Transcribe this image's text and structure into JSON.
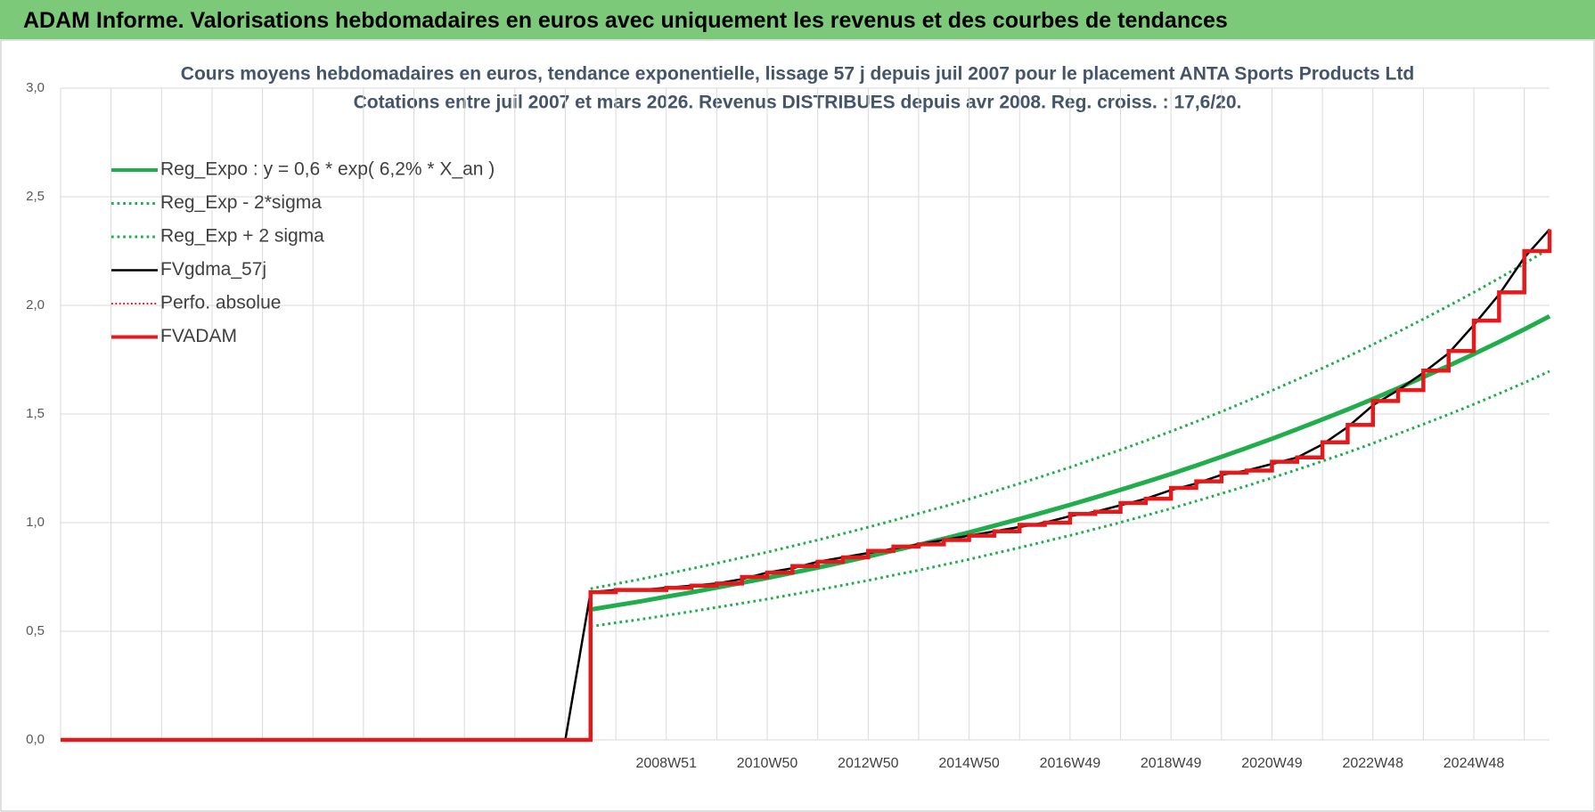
{
  "header": {
    "title": "ADAM Informe. Valorisations hebdomadaires en euros avec uniquement les revenus et des courbes de tendances"
  },
  "chart_data": {
    "type": "line",
    "title": "Cours moyens hebdomadaires en euros, tendance exponentielle, lissage 57 j depuis juil 2007 pour le placement ANTA Sports Products Ltd",
    "subtitle": "Cotations entre juil 2007 et mars 2026. Revenus DISTRIBUES depuis avr 2008. Reg. croiss. : 17,6/20.",
    "categories": [
      null,
      null,
      null,
      null,
      null,
      null,
      null,
      null,
      null,
      null,
      null,
      null,
      null,
      null,
      null,
      null,
      null,
      null,
      null,
      null,
      null,
      null,
      null,
      null,
      "2008W51",
      null,
      null,
      null,
      "2010W50",
      null,
      null,
      null,
      "2012W50",
      null,
      null,
      null,
      "2014W50",
      null,
      null,
      null,
      "2016W49",
      null,
      null,
      null,
      "2018W49",
      null,
      null,
      null,
      "2020W49",
      null,
      null,
      null,
      "2022W48",
      null,
      null,
      null,
      "2024W48",
      null,
      null,
      null
    ],
    "ylim": [
      0,
      3
    ],
    "yticks": [
      {
        "value": 0,
        "label": "0,0"
      },
      {
        "value": 0.5,
        "label": "0,5"
      },
      {
        "value": 1,
        "label": "1,0"
      },
      {
        "value": 1.5,
        "label": "1,5"
      },
      {
        "value": 2,
        "label": "2,0"
      },
      {
        "value": 2.5,
        "label": "2,5"
      },
      {
        "value": 3,
        "label": "3,0"
      }
    ],
    "grid": true,
    "legend": "top-left",
    "series": [
      {
        "name": "Reg_Expo : y = 0,6 * exp( 6,2% *  X_an )",
        "color": "#1fae4b",
        "style": "solid",
        "width": 5,
        "values": [
          null,
          null,
          null,
          null,
          null,
          null,
          null,
          null,
          null,
          null,
          null,
          null,
          null,
          null,
          null,
          null,
          null,
          null,
          null,
          null,
          null,
          0.6,
          0.619,
          0.638,
          0.659,
          0.679,
          0.701,
          0.723,
          0.745,
          0.769,
          0.793,
          0.818,
          0.844,
          0.871,
          0.898,
          0.926,
          0.955,
          0.986,
          1.017,
          1.049,
          1.082,
          1.116,
          1.151,
          1.187,
          1.224,
          1.263,
          1.303,
          1.344,
          1.386,
          1.43,
          1.475,
          1.521,
          1.569,
          1.619,
          1.67,
          1.722,
          1.776,
          1.832,
          1.89,
          1.95
        ]
      },
      {
        "name": "Reg_Exp - 2*sigma",
        "color": "#1fae4b",
        "style": "dotted",
        "width": 3,
        "values": [
          null,
          null,
          null,
          null,
          null,
          null,
          null,
          null,
          null,
          null,
          null,
          null,
          null,
          null,
          null,
          null,
          null,
          null,
          null,
          null,
          null,
          0.522,
          0.539,
          0.555,
          0.573,
          0.591,
          0.61,
          0.629,
          0.648,
          0.669,
          0.69,
          0.712,
          0.734,
          0.758,
          0.781,
          0.806,
          0.831,
          0.858,
          0.885,
          0.913,
          0.941,
          0.971,
          1.001,
          1.033,
          1.065,
          1.099,
          1.134,
          1.169,
          1.206,
          1.244,
          1.283,
          1.323,
          1.365,
          1.409,
          1.453,
          1.498,
          1.545,
          1.594,
          1.644,
          1.697
        ]
      },
      {
        "name": "Reg_Exp + 2 sigma",
        "color": "#1fae4b",
        "style": "dotted",
        "width": 3,
        "values": [
          null,
          null,
          null,
          null,
          null,
          null,
          null,
          null,
          null,
          null,
          null,
          null,
          null,
          null,
          null,
          null,
          null,
          null,
          null,
          null,
          null,
          0.696,
          0.718,
          0.74,
          0.764,
          0.788,
          0.813,
          0.839,
          0.864,
          0.892,
          0.92,
          0.949,
          0.979,
          1.01,
          1.042,
          1.074,
          1.108,
          1.144,
          1.18,
          1.217,
          1.255,
          1.295,
          1.335,
          1.377,
          1.42,
          1.465,
          1.511,
          1.559,
          1.608,
          1.659,
          1.711,
          1.764,
          1.82,
          1.878,
          1.937,
          1.998,
          2.06,
          2.125,
          2.192,
          2.262
        ]
      },
      {
        "name": "FVgdma_57j",
        "color": "#000000",
        "style": "solid",
        "width": 2.5,
        "values": [
          0,
          0,
          0,
          0,
          0,
          0,
          0,
          0,
          0,
          0,
          0,
          0,
          0,
          0,
          0,
          0,
          0,
          0,
          0,
          0,
          0,
          0.68,
          0.69,
          0.69,
          0.7,
          0.71,
          0.72,
          0.74,
          0.77,
          0.79,
          0.82,
          0.84,
          0.86,
          0.88,
          0.9,
          0.92,
          0.94,
          0.96,
          0.98,
          1.0,
          1.03,
          1.05,
          1.08,
          1.11,
          1.15,
          1.18,
          1.22,
          1.24,
          1.27,
          1.3,
          1.36,
          1.44,
          1.54,
          1.61,
          1.69,
          1.78,
          1.91,
          2.05,
          2.22,
          2.35
        ]
      },
      {
        "name": "Perfo. absolue",
        "color": "#e31a1c",
        "style": "dotted",
        "width": 2,
        "values": [
          null,
          null,
          null,
          null,
          null,
          null,
          null,
          null,
          null,
          null,
          null,
          null,
          null,
          null,
          null,
          null,
          null,
          null,
          null,
          null,
          null,
          null,
          null,
          null,
          null,
          null,
          null,
          null,
          null,
          null,
          null,
          null,
          null,
          null,
          null,
          null,
          null,
          null,
          null,
          null,
          null,
          null,
          null,
          null,
          null,
          null,
          null,
          null,
          null,
          null,
          null,
          null,
          null,
          null,
          null,
          null,
          null,
          null,
          null,
          null
        ]
      },
      {
        "name": "FVADAM",
        "color": "#e31a1c",
        "style": "solid",
        "width": 4.5,
        "step": true,
        "values": [
          0,
          0,
          0,
          0,
          0,
          0,
          0,
          0,
          0,
          0,
          0,
          0,
          0,
          0,
          0,
          0,
          0,
          0,
          0,
          0,
          0,
          0.68,
          0.69,
          0.69,
          0.7,
          0.71,
          0.72,
          0.75,
          0.77,
          0.8,
          0.82,
          0.84,
          0.87,
          0.89,
          0.9,
          0.92,
          0.94,
          0.96,
          0.99,
          1.0,
          1.04,
          1.05,
          1.09,
          1.11,
          1.16,
          1.19,
          1.23,
          1.24,
          1.28,
          1.3,
          1.37,
          1.45,
          1.56,
          1.61,
          1.7,
          1.79,
          1.93,
          2.06,
          2.25,
          2.35
        ]
      }
    ]
  }
}
